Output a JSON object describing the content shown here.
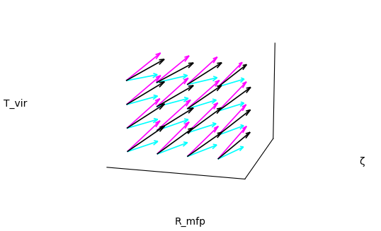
{
  "chart_data": {
    "type": "quiver3d",
    "x_label": "R_mfp",
    "y_label": "ζ",
    "z_label": "T_vir",
    "tick_labels": false,
    "grid": false,
    "xlim": [
      0.5,
      5.0
    ],
    "ylim": [
      0,
      4
    ],
    "zlim": [
      0.5,
      4.8
    ],
    "points": {
      "x": [
        1,
        2,
        3,
        4,
        1,
        2,
        3,
        4,
        1,
        2,
        3,
        4,
        1,
        2,
        3,
        4
      ],
      "y": [
        0.5,
        0.5,
        0.5,
        0.5,
        0.5,
        0.5,
        0.5,
        0.5,
        0.5,
        0.5,
        0.5,
        0.5,
        0.5,
        0.5,
        0.5,
        0.5
      ],
      "z": [
        1,
        1,
        1,
        1,
        2,
        2,
        2,
        2,
        3,
        3,
        3,
        3,
        4,
        4,
        4,
        4
      ]
    },
    "series": [
      {
        "color": "#ff00ff",
        "u": [
          0.3,
          0.3,
          0.35,
          0.3,
          0.3,
          0.35,
          0.3,
          0.3,
          0.3,
          0.3,
          0.35,
          0.3,
          0.3,
          0.3,
          0.3,
          0.2
        ],
        "v": [
          2.4,
          2.5,
          2.4,
          2.5,
          2.4,
          2.5,
          2.5,
          2.4,
          2.5,
          2.4,
          2.5,
          2.4,
          2.5,
          2.5,
          2.4,
          2.2
        ],
        "w": [
          0.4,
          0.4,
          0.35,
          0.4,
          0.4,
          0.4,
          0.35,
          0.4,
          0.4,
          0.4,
          0.35,
          0.4,
          0.4,
          0.35,
          0.4,
          0.3
        ]
      },
      {
        "color": "#00ffff",
        "u": [
          0.25,
          0.3,
          0.3,
          0.25,
          0.25,
          0.3,
          0.3,
          0.25,
          0.25,
          0.3,
          0.3,
          0.25,
          0.25,
          0.3,
          0.3,
          0.25
        ],
        "v": [
          2.3,
          2.3,
          2.4,
          2.3,
          2.3,
          2.4,
          2.3,
          2.3,
          2.3,
          2.4,
          2.3,
          2.3,
          2.3,
          2.3,
          2.4,
          2.3
        ],
        "w": [
          -0.5,
          -0.45,
          -0.5,
          -0.45,
          -0.5,
          -0.45,
          -0.5,
          -0.5,
          -0.45,
          -0.5,
          -0.45,
          -0.5,
          -0.5,
          -0.45,
          -0.5,
          -0.45
        ]
      },
      {
        "color": "#000000",
        "u": [
          0.4,
          0.4,
          0.45,
          0.4,
          0.4,
          0.45,
          0.4,
          0.4,
          0.4,
          0.45,
          0.4,
          0.4,
          0.4,
          0.45,
          0.4,
          0.3
        ],
        "v": [
          2.6,
          2.6,
          2.5,
          2.6,
          2.6,
          2.5,
          2.6,
          2.6,
          2.6,
          2.5,
          2.6,
          2.6,
          2.6,
          2.5,
          2.6,
          2.4
        ],
        "w": [
          0.1,
          0.1,
          0.05,
          0.1,
          0.1,
          0.05,
          0.1,
          0.1,
          0.1,
          0.05,
          0.1,
          0.1,
          0.1,
          0.05,
          0.1,
          0.15
        ]
      }
    ]
  }
}
